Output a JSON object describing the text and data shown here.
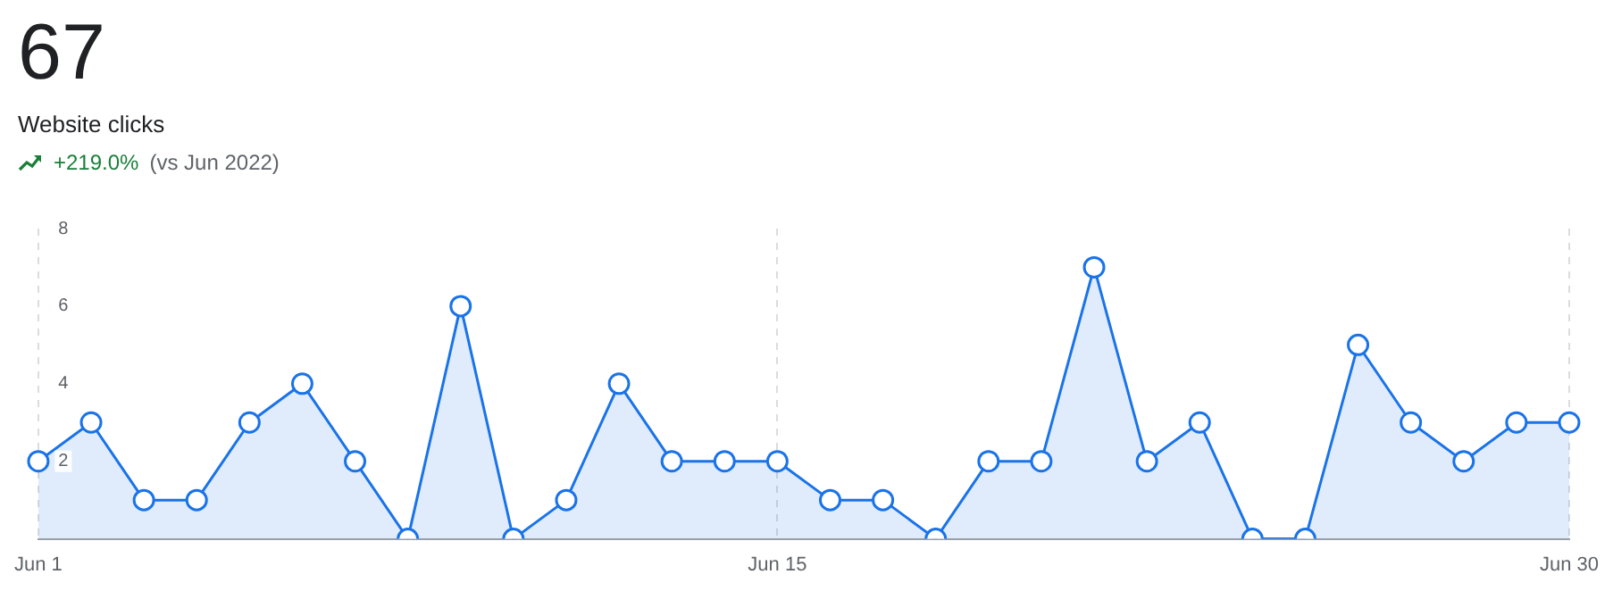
{
  "chart_data": {
    "type": "area",
    "title": "67",
    "subtitle": "Website clicks",
    "annotations": [
      "+219.0%",
      "(vs Jun 2022)"
    ],
    "categories": [
      "Jun 1",
      null,
      null,
      null,
      null,
      null,
      null,
      null,
      null,
      null,
      null,
      null,
      null,
      null,
      "Jun 15",
      null,
      null,
      null,
      null,
      null,
      null,
      null,
      null,
      null,
      null,
      null,
      null,
      null,
      null,
      "Jun 30"
    ],
    "series": [
      {
        "color": "#1a73e8",
        "values": [
          2,
          3,
          1,
          1,
          3,
          4,
          2,
          0,
          6,
          0,
          1,
          4,
          2,
          2,
          2,
          1,
          1,
          0,
          2,
          2,
          7,
          2,
          3,
          0,
          0,
          5,
          3,
          2,
          3,
          3
        ]
      }
    ],
    "ylim": [
      0,
      8
    ],
    "yticks": [
      2,
      4,
      6,
      8
    ],
    "grid": "x",
    "marker": "circle",
    "line_style": "solid"
  }
}
